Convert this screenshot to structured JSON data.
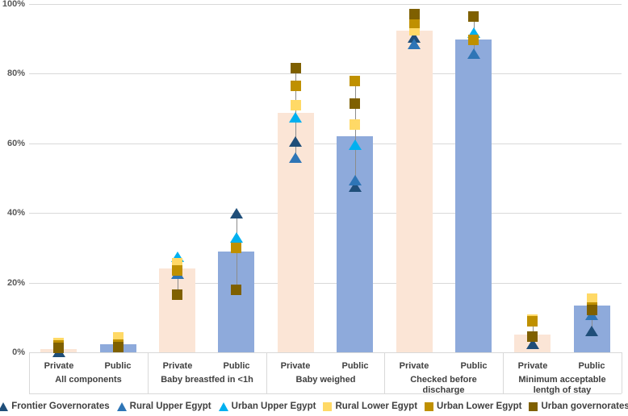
{
  "chart_data": {
    "type": "bar",
    "title": "",
    "xlabel": "",
    "ylabel": "",
    "ylim": [
      0,
      100
    ],
    "ytick_step": 20,
    "yticks": [
      "0%",
      "20%",
      "40%",
      "60%",
      "80%",
      "100%"
    ],
    "grid": true,
    "legend_position": "bottom",
    "sub_categories": [
      "Private",
      "Public"
    ],
    "bar_series": [
      {
        "name": "Private",
        "color": "#fbe5d6"
      },
      {
        "name": "Public",
        "color": "#8eaadb"
      }
    ],
    "marker_series": [
      {
        "name": "Frontier Governorates",
        "shape": "triangle",
        "color": "#1f4e79"
      },
      {
        "name": "Rural Upper Egypt",
        "shape": "triangle",
        "color": "#2e75b6"
      },
      {
        "name": "Urban Upper Egypt",
        "shape": "triangle",
        "color": "#00b0f0"
      },
      {
        "name": "Rural Lower Egypt",
        "shape": "square",
        "color": "#ffd966"
      },
      {
        "name": "Urban Lower Egypt",
        "shape": "square",
        "color": "#bf9000"
      },
      {
        "name": "Urban governorates",
        "shape": "square",
        "color": "#7f6000"
      }
    ],
    "groups": [
      {
        "label": "All components",
        "bars": [
          {
            "type": "Private",
            "value": 1.0,
            "markers": {
              "Frontier Governorates": 0.2,
              "Rural Lower Egypt": 2.6,
              "Urban Lower Egypt": 1.9,
              "Urban governorates": 1.2
            }
          },
          {
            "type": "Public",
            "value": 2.4,
            "markers": {
              "Rural Lower Egypt": 4.3,
              "Urban Lower Egypt": 2.2,
              "Urban governorates": 1.6
            }
          }
        ]
      },
      {
        "label": "Baby breastfed in <1h",
        "bars": [
          {
            "type": "Private",
            "value": 24.0,
            "markers": {
              "Rural Upper Egypt": 22.5,
              "Urban Upper Egypt": 27.5,
              "Rural Lower Egypt": 25.5,
              "Urban Lower Egypt": 23.5,
              "Urban governorates": 16.5
            }
          },
          {
            "type": "Public",
            "value": 29.0,
            "markers": {
              "Frontier Governorates": 40.0,
              "Urban Upper Egypt": 33.0,
              "Urban Lower Egypt": 30.0,
              "Urban governorates": 18.0
            }
          }
        ]
      },
      {
        "label": "Baby weighed",
        "bars": [
          {
            "type": "Private",
            "value": 68.7,
            "markers": {
              "Frontier Governorates": 60.5,
              "Rural Upper Egypt": 56.0,
              "Urban Upper Egypt": 67.5,
              "Rural Lower Egypt": 71.0,
              "Urban Lower Egypt": 76.5,
              "Urban governorates": 81.5
            }
          },
          {
            "type": "Public",
            "value": 62.0,
            "markers": {
              "Frontier Governorates": 47.5,
              "Rural Upper Egypt": 49.5,
              "Urban Upper Egypt": 59.5,
              "Rural Lower Egypt": 65.5,
              "Urban Lower Egypt": 78.0,
              "Urban governorates": 71.5
            }
          }
        ]
      },
      {
        "label": "Checked before discharge",
        "bars": [
          {
            "type": "Private",
            "value": 92.4,
            "markers": {
              "Frontier Governorates": 90.5,
              "Rural Upper Egypt": 88.5,
              "Rural Lower Egypt": 92.5,
              "Urban Lower Egypt": 94.5,
              "Urban governorates": 97.0
            }
          },
          {
            "type": "Public",
            "value": 89.8,
            "markers": {
              "Rural Upper Egypt": 85.7,
              "Urban Upper Egypt": 91.7,
              "Rural Lower Egypt": 89.6,
              "Urban Lower Egypt": 89.6,
              "Urban governorates": 96.5
            }
          }
        ]
      },
      {
        "label": "Minimum acceptable lentgh of stay",
        "bars": [
          {
            "type": "Private",
            "value": 5.0,
            "markers": {
              "Frontier Governorates": 2.5,
              "Rural Lower Egypt": 9.3,
              "Urban Lower Egypt": 9.0,
              "Urban governorates": 4.6
            }
          },
          {
            "type": "Public",
            "value": 13.5,
            "markers": {
              "Frontier Governorates": 6.2,
              "Rural Upper Egypt": 10.8,
              "Rural Lower Egypt": 15.5,
              "Urban Lower Egypt": 12.9,
              "Urban governorates": 12.2
            }
          }
        ]
      }
    ]
  }
}
